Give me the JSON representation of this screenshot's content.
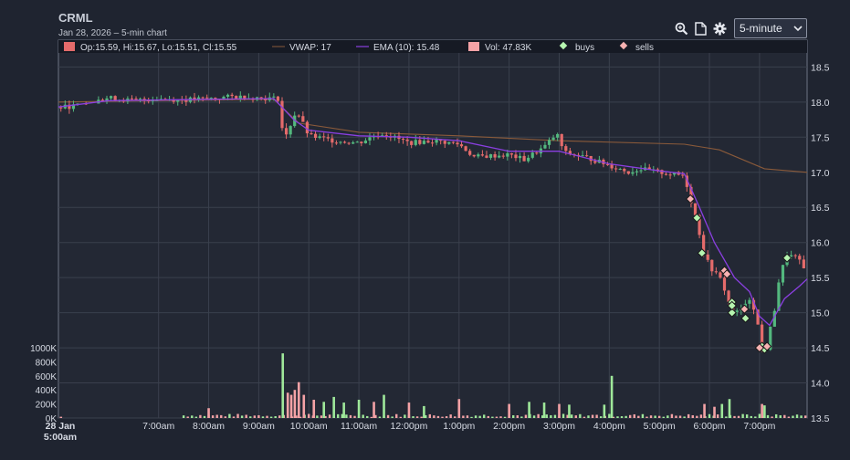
{
  "header": {
    "ticker": "CRML",
    "subtitle": "Jan 28, 2026 – 5-min chart"
  },
  "toolbar": {
    "icons": [
      "zoom-icon",
      "document-icon",
      "gear-icon"
    ],
    "interval_selected": "5-minute"
  },
  "legend": {
    "ohlc": "Op:15.59, Hi:15.67, Lo:15.51, Cl:15.55",
    "vwap": "VWAP: 17",
    "ema": "EMA (10): 15.48",
    "vol": "Vol: 47.83K",
    "buys": "buys",
    "sells": "sells"
  },
  "colors": {
    "background": "#1f2430",
    "grid": "#3a404d",
    "up": "#53b87e",
    "down": "#e46b6b",
    "vol_up": "#9fe89a",
    "vol_down": "#f4a2a6",
    "vwap": "#8a5a3a",
    "ema": "#8a3fe0",
    "buy_marker": "#b6f5b0",
    "sell_marker": "#f7b2b2"
  },
  "chart_data": {
    "type": "candlestick",
    "price_axis": {
      "ticks": [
        18.5,
        18.0,
        17.5,
        17.0,
        16.5,
        16.0,
        15.5,
        15.0,
        14.5,
        14.0,
        13.5
      ],
      "range": [
        13.5,
        18.7
      ]
    },
    "volume_axis": {
      "ticks": [
        "1000K",
        "800K",
        "600K",
        "400K",
        "200K",
        "0K"
      ],
      "values": [
        1000,
        800,
        600,
        400,
        200,
        0
      ],
      "range": [
        0,
        1000
      ]
    },
    "time_axis": {
      "labels": [
        "28 Jan\n5:00am",
        "7:00am",
        "8:00am",
        "9:00am",
        "10:00am",
        "11:00am",
        "12:00pm",
        "1:00pm",
        "2:00pm",
        "3:00pm",
        "4:00pm",
        "5:00pm",
        "6:00pm",
        "7:00pm"
      ],
      "hours": [
        5,
        7,
        8,
        9,
        10,
        11,
        12,
        13,
        14,
        15,
        16,
        17,
        18,
        19
      ],
      "range": [
        5,
        19.95
      ]
    },
    "price_path": [
      [
        5.0,
        17.92
      ],
      [
        5.5,
        17.96
      ],
      [
        6.0,
        18.06
      ],
      [
        6.5,
        18.02
      ],
      [
        7.0,
        18.05
      ],
      [
        7.5,
        18.03
      ],
      [
        8.0,
        18.05
      ],
      [
        8.5,
        18.08
      ],
      [
        9.0,
        18.06
      ],
      [
        9.4,
        18.05
      ],
      [
        9.5,
        17.42
      ],
      [
        9.6,
        17.62
      ],
      [
        9.75,
        17.88
      ],
      [
        10.0,
        17.52
      ],
      [
        10.5,
        17.45
      ],
      [
        11.0,
        17.42
      ],
      [
        11.3,
        17.52
      ],
      [
        11.5,
        17.55
      ],
      [
        12.0,
        17.42
      ],
      [
        12.5,
        17.45
      ],
      [
        13.0,
        17.4
      ],
      [
        13.3,
        17.22
      ],
      [
        14.0,
        17.25
      ],
      [
        14.3,
        17.18
      ],
      [
        14.7,
        17.36
      ],
      [
        14.95,
        17.55
      ],
      [
        15.1,
        17.28
      ],
      [
        15.5,
        17.22
      ],
      [
        16.0,
        17.1
      ],
      [
        16.4,
        17.0
      ],
      [
        16.6,
        17.05
      ],
      [
        17.0,
        17.0
      ],
      [
        17.5,
        16.95
      ],
      [
        17.62,
        16.62
      ],
      [
        17.75,
        16.3
      ],
      [
        17.9,
        15.8
      ],
      [
        18.05,
        15.62
      ],
      [
        18.25,
        15.45
      ],
      [
        18.4,
        15.1
      ],
      [
        18.5,
        14.98
      ],
      [
        18.7,
        15.08
      ],
      [
        18.8,
        15.2
      ],
      [
        18.95,
        14.98
      ],
      [
        19.0,
        14.5
      ],
      [
        19.12,
        14.45
      ],
      [
        19.3,
        15.05
      ],
      [
        19.4,
        15.52
      ],
      [
        19.55,
        15.82
      ],
      [
        19.75,
        15.78
      ],
      [
        19.95,
        15.55
      ]
    ],
    "vwap": [
      [
        5.0,
        18.0
      ],
      [
        9.3,
        18.04
      ],
      [
        9.8,
        17.7
      ],
      [
        11.0,
        17.57
      ],
      [
        13.0,
        17.52
      ],
      [
        15.0,
        17.45
      ],
      [
        17.5,
        17.4
      ],
      [
        18.2,
        17.32
      ],
      [
        19.1,
        17.05
      ],
      [
        19.95,
        17.0
      ]
    ],
    "ema": [
      [
        5.0,
        17.93
      ],
      [
        6.0,
        18.02
      ],
      [
        8.0,
        18.04
      ],
      [
        9.3,
        18.05
      ],
      [
        9.7,
        17.75
      ],
      [
        10.0,
        17.6
      ],
      [
        11.0,
        17.52
      ],
      [
        12.0,
        17.5
      ],
      [
        13.0,
        17.45
      ],
      [
        14.0,
        17.3
      ],
      [
        15.0,
        17.3
      ],
      [
        16.0,
        17.12
      ],
      [
        17.0,
        17.02
      ],
      [
        17.5,
        16.98
      ],
      [
        17.8,
        16.5
      ],
      [
        18.1,
        16.0
      ],
      [
        18.5,
        15.5
      ],
      [
        18.8,
        15.3
      ],
      [
        19.0,
        14.95
      ],
      [
        19.2,
        14.82
      ],
      [
        19.5,
        15.2
      ],
      [
        19.8,
        15.38
      ],
      [
        19.95,
        15.48
      ]
    ],
    "buys": [
      [
        17.75,
        16.35
      ],
      [
        17.85,
        15.85
      ],
      [
        18.45,
        15.15
      ],
      [
        18.45,
        15.0
      ],
      [
        18.45,
        15.1
      ],
      [
        18.72,
        14.92
      ],
      [
        19.05,
        14.52
      ],
      [
        19.1,
        14.48
      ],
      [
        19.55,
        15.78
      ]
    ],
    "sells": [
      [
        17.62,
        16.62
      ],
      [
        18.3,
        15.6
      ],
      [
        18.35,
        15.55
      ],
      [
        18.7,
        15.05
      ],
      [
        19.0,
        14.5
      ],
      [
        19.15,
        14.52
      ]
    ],
    "volume_spikes": [
      [
        9.48,
        920
      ],
      [
        9.58,
        360
      ],
      [
        9.65,
        330
      ],
      [
        9.72,
        400
      ],
      [
        9.8,
        510
      ],
      [
        9.9,
        330
      ],
      [
        10.1,
        260
      ],
      [
        10.3,
        230
      ],
      [
        10.5,
        300
      ],
      [
        10.7,
        220
      ],
      [
        11.0,
        260
      ],
      [
        11.3,
        230
      ],
      [
        11.5,
        330
      ],
      [
        12.0,
        220
      ],
      [
        12.3,
        170
      ],
      [
        13.0,
        270
      ],
      [
        14.0,
        200
      ],
      [
        14.4,
        230
      ],
      [
        14.7,
        220
      ],
      [
        15.0,
        200
      ],
      [
        15.2,
        190
      ],
      [
        15.9,
        190
      ],
      [
        16.05,
        600
      ],
      [
        17.9,
        200
      ],
      [
        18.1,
        160
      ],
      [
        18.25,
        200
      ],
      [
        18.4,
        270
      ],
      [
        19.05,
        200
      ],
      [
        19.1,
        180
      ],
      [
        8.0,
        140
      ],
      [
        5.05,
        18
      ]
    ]
  }
}
